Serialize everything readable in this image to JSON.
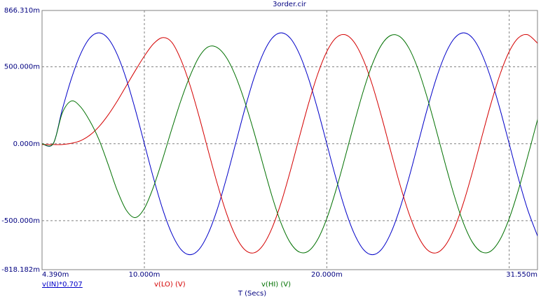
{
  "chart_data": {
    "type": "line",
    "title": "3order.cir",
    "x_label": "T (Secs)",
    "xlim": [
      4.39,
      31.55
    ],
    "xticks": [
      {
        "value": 4.39,
        "label": "4.390m"
      },
      {
        "value": 10,
        "label": "10.000m"
      },
      {
        "value": 20,
        "label": "20.000m"
      },
      {
        "value": 30,
        "label": null
      },
      {
        "value": 31.55,
        "label": "31.550m"
      }
    ],
    "ylim": [
      -818.182,
      866.31
    ],
    "yticks": [
      {
        "value": 866.31,
        "label": "866.310m"
      },
      {
        "value": 500,
        "label": "500.000m"
      },
      {
        "value": 0,
        "label": "0.000m"
      },
      {
        "value": -500,
        "label": "-500.000m"
      },
      {
        "value": -818.182,
        "label": "-818.182m"
      }
    ],
    "grid": true,
    "x": [
      4.39,
      5.0,
      5.5,
      6.0,
      6.5,
      7.0,
      7.5,
      8.0,
      8.5,
      9.0,
      9.5,
      10.0,
      10.5,
      11.0,
      11.5,
      12.0,
      12.5,
      13.0,
      13.5,
      14.0,
      14.5,
      15.0,
      15.5,
      16.0,
      16.5,
      17.0,
      17.5,
      18.0,
      18.5,
      19.0,
      19.5,
      20.0,
      20.5,
      21.0,
      21.5,
      22.0,
      22.5,
      23.0,
      23.5,
      24.0,
      24.5,
      25.0,
      25.5,
      26.0,
      26.5,
      27.0,
      27.5,
      28.0,
      28.5,
      29.0,
      29.5,
      30.0,
      30.5,
      31.0,
      31.5,
      31.55
    ],
    "series": [
      {
        "name": "v(IN)*0.707",
        "color": "#0000c8",
        "values": [
          0,
          0,
          223,
          424,
          583,
          686,
          721,
          686,
          583,
          424,
          223,
          0,
          -223,
          -424,
          -583,
          -686,
          -721,
          -686,
          -583,
          -424,
          -223,
          0,
          223,
          424,
          583,
          686,
          721,
          686,
          583,
          424,
          223,
          0,
          -223,
          -424,
          -583,
          -686,
          -721,
          -686,
          -583,
          -424,
          -223,
          0,
          223,
          424,
          583,
          686,
          721,
          686,
          583,
          424,
          223,
          0,
          -223,
          -424,
          -583,
          -596
        ]
      },
      {
        "name": "v(LO) (V)",
        "color": "#d40000",
        "values": [
          -5,
          -5,
          -5,
          3,
          20,
          55,
          110,
          185,
          275,
          375,
          475,
          570,
          650,
          690,
          660,
          547,
          381,
          177,
          -45,
          -261,
          -452,
          -599,
          -688,
          -709,
          -660,
          -547,
          -381,
          -177,
          45,
          261,
          452,
          599,
          688,
          709,
          660,
          547,
          381,
          177,
          -45,
          -261,
          -452,
          -599,
          -688,
          -709,
          -660,
          -547,
          -381,
          -177,
          45,
          261,
          452,
          599,
          688,
          709,
          660,
          652
        ]
      },
      {
        "name": "v(HI) (V)",
        "color": "#007000",
        "values": [
          0,
          0,
          200,
          278,
          240,
          150,
          30,
          -130,
          -300,
          -430,
          -480,
          -420,
          -280,
          -100,
          95,
          280,
          440,
          565,
          630,
          625,
          560,
          440,
          275,
          80,
          -133,
          -342,
          -518,
          -643,
          -704,
          -697,
          -622,
          -486,
          -302,
          -89,
          133,
          342,
          518,
          643,
          704,
          697,
          622,
          486,
          302,
          89,
          -133,
          -342,
          -518,
          -643,
          -704,
          -697,
          -622,
          -486,
          -302,
          -89,
          133,
          155
        ]
      }
    ]
  }
}
